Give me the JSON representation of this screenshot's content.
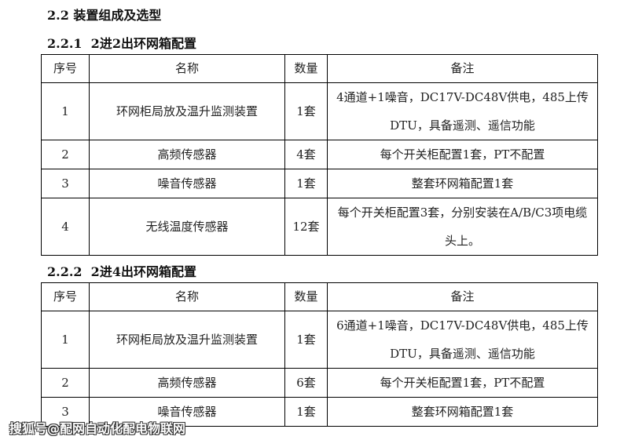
{
  "section": "2.2 装置组成及选型",
  "sub1": "2.2.1  2进2出环网箱配置",
  "sub2": "2.2.2  2进4出环网箱配置",
  "headers": [
    "序号",
    "名称",
    "数量",
    "备注"
  ],
  "table1": [
    [
      "1",
      "环网柜局放及温升监测装置",
      "1套",
      "4通道+1噪音，DC17V-DC48V供电，485上传DTU，具备遥测、遥信功能"
    ],
    [
      "2",
      "高频传感器",
      "4套",
      "每个开关柜配置1套，PT不配置"
    ],
    [
      "3",
      "噪音传感器",
      "1套",
      "整套环网箱配置1套"
    ],
    [
      "4",
      "无线温度传感器",
      "12套",
      "每个开关柜配置3套，分别安装在A/B/C3项电缆头上。"
    ]
  ],
  "table2": [
    [
      "1",
      "环网柜局放及温升监测装置",
      "1套",
      "6通道+1噪音，DC17V-DC48V供电，485上传DTU，具备遥测、遥信功能"
    ],
    [
      "2",
      "高频传感器",
      "6套",
      "每个开关柜配置1套，PT不配置"
    ],
    [
      "3",
      "噪音传感器",
      "1套",
      "整套环网箱配置1套"
    ]
  ],
  "watermark": "搜狐号@配网自动化配电物联网"
}
